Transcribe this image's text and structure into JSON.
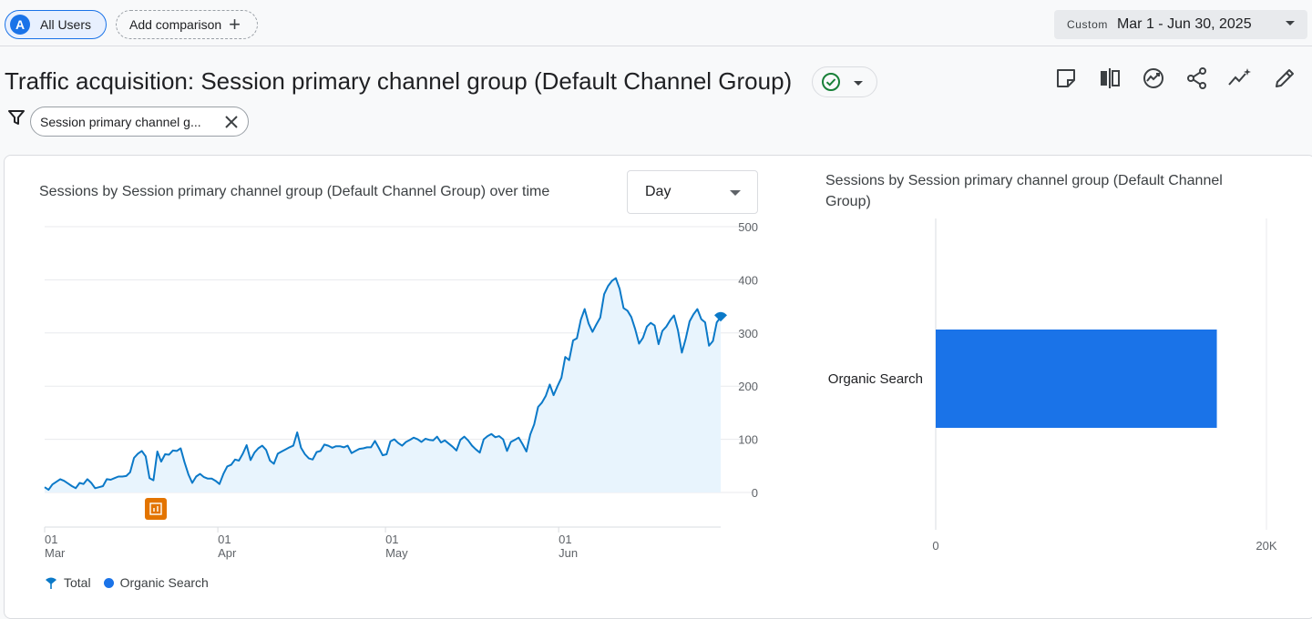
{
  "topbar": {
    "users_chip": {
      "avatar_letter": "A",
      "label": "All Users"
    },
    "add_comparison": {
      "label": "Add comparison",
      "icon": "plus-icon"
    },
    "date_range": {
      "badge": "Custom",
      "dates": "Mar 1 - Jun 30, 2025"
    }
  },
  "header": {
    "title": "Traffic acquisition: Session primary channel group (Default Channel Group)",
    "status_icon": "check-circle-icon",
    "toolbar_icons": [
      "note-icon",
      "compare-columns-icon",
      "insights-chart-icon",
      "share-icon",
      "sparkle-insights-icon",
      "edit-pencil-icon"
    ],
    "filter_chip": {
      "label": "Session primary channel g..."
    }
  },
  "colors": {
    "accent": "#1a73e8",
    "total_line": "#0b79c8",
    "area_fill": "#e8f4fd",
    "annotation": "#e37400"
  },
  "line_card": {
    "title": "Sessions by Session primary channel group (Default Channel Group) over time",
    "granularity": "Day",
    "legend": [
      {
        "name": "Total",
        "icon": "pin-marker-icon"
      },
      {
        "name": "Organic Search",
        "icon": "dot-icon"
      }
    ]
  },
  "bar_card": {
    "title": "Sessions by Session primary channel group (Default Channel Group)"
  },
  "chart_data": [
    {
      "type": "line",
      "title": "Sessions by Session primary channel group (Default Channel Group) over time",
      "x_start": "2025-03-01",
      "x_end": "2025-06-30",
      "x_ticks": [
        {
          "day": "01",
          "month": "Mar",
          "date": "2025-03-01"
        },
        {
          "day": "01",
          "month": "Apr",
          "date": "2025-04-01"
        },
        {
          "day": "01",
          "month": "May",
          "date": "2025-05-01"
        },
        {
          "day": "01",
          "month": "Jun",
          "date": "2025-06-01"
        }
      ],
      "y_ticks": [
        "500",
        "400",
        "300",
        "200",
        "100",
        "0"
      ],
      "ylim": [
        0,
        500
      ],
      "grid": true,
      "legend_position": "bottom-left",
      "series": [
        {
          "name": "Total",
          "values": [
            10,
            5,
            15,
            20,
            25,
            22,
            17,
            12,
            8,
            18,
            16,
            25,
            18,
            8,
            10,
            12,
            25,
            24,
            27,
            30,
            30,
            31,
            38,
            65,
            73,
            78,
            68,
            27,
            23,
            77,
            58,
            72,
            71,
            79,
            78,
            83,
            57,
            34,
            18,
            30,
            35,
            29,
            26,
            26,
            22,
            16,
            35,
            49,
            52,
            62,
            60,
            73,
            89,
            61,
            75,
            83,
            88,
            80,
            60,
            54,
            73,
            77,
            81,
            85,
            88,
            113,
            84,
            72,
            64,
            62,
            76,
            78,
            90,
            88,
            84,
            87,
            87,
            85,
            88,
            74,
            78,
            82,
            83,
            85,
            85,
            97,
            84,
            70,
            72,
            96,
            100,
            93,
            88,
            95,
            99,
            103,
            100,
            95,
            101,
            99,
            98,
            105,
            94,
            98,
            92,
            86,
            79,
            99,
            105,
            98,
            88,
            81,
            75,
            100,
            106,
            110,
            104,
            106,
            100,
            78,
            95,
            99,
            103,
            91,
            77,
            109,
            128,
            161,
            169,
            182,
            203,
            183,
            200,
            216,
            255,
            249,
            286,
            290,
            325,
            345,
            318,
            302,
            316,
            329,
            373,
            388,
            398,
            403,
            383,
            347,
            342,
            330,
            307,
            280,
            291,
            312,
            319,
            314,
            279,
            304,
            312,
            324,
            333,
            305,
            263,
            289,
            322,
            335,
            345,
            326,
            320,
            276,
            285,
            320,
            330
          ],
          "note": "daily values Mar 1 - Jun 30, sampled"
        },
        {
          "name": "Organic Search",
          "values": []
        }
      ]
    },
    {
      "type": "bar",
      "title": "Sessions by Session primary channel group (Default Channel Group)",
      "categories": [
        "Organic Search"
      ],
      "values": [
        17000
      ],
      "x_ticks": [
        "0",
        "20K"
      ],
      "xlim": [
        0,
        20000
      ]
    }
  ]
}
